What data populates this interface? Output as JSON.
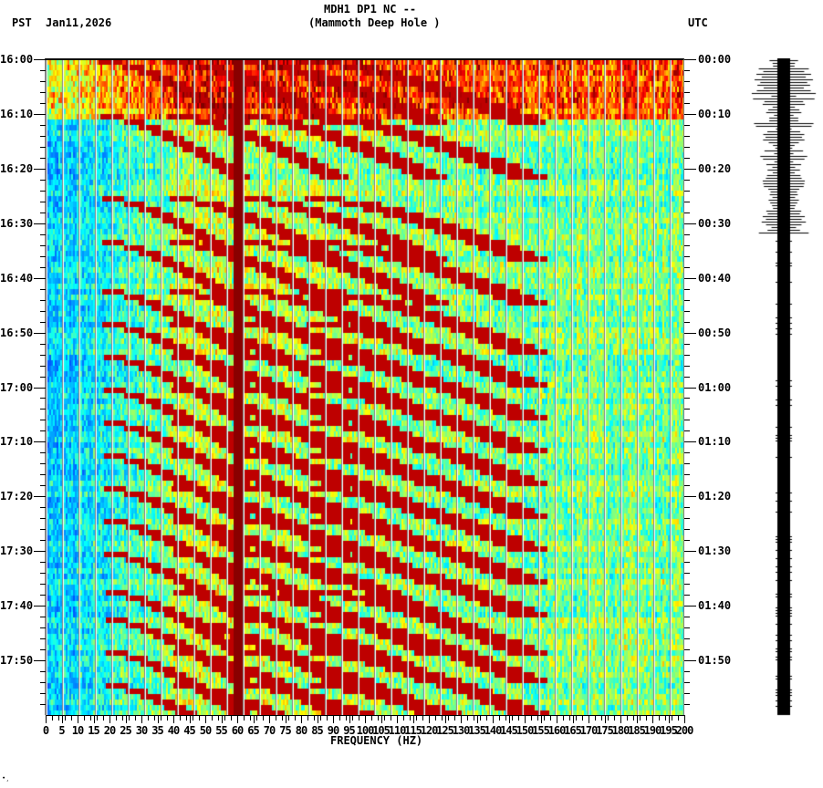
{
  "header": {
    "title_line1": "MDH1 DP1 NC --",
    "title_line2": "(Mammoth Deep Hole )",
    "left_timezone": "PST",
    "date": "Jan11,2026",
    "right_timezone": "UTC"
  },
  "footer": {
    "corner_mark": "∙̧"
  },
  "chart_data": {
    "type": "heatmap",
    "title": "MDH1 DP1 NC -- (Mammoth Deep Hole )",
    "subtitle": "Jan11,2026",
    "xlabel": "FREQUENCY (HZ)",
    "ylabel_left": "PST",
    "ylabel_right": "UTC",
    "xlim": [
      0,
      200
    ],
    "x_ticks": [
      0,
      5,
      10,
      15,
      20,
      25,
      30,
      35,
      40,
      45,
      50,
      55,
      60,
      65,
      70,
      75,
      80,
      85,
      90,
      95,
      100,
      105,
      110,
      115,
      120,
      125,
      130,
      135,
      140,
      145,
      150,
      155,
      160,
      165,
      170,
      175,
      180,
      185,
      190,
      195,
      200
    ],
    "x_tick_labels": [
      "0",
      "5",
      "10",
      "15",
      "20",
      "25",
      "30",
      "35",
      "40",
      "45",
      "50",
      "55",
      "60",
      "65",
      "70",
      "75",
      "80",
      "85",
      "90",
      "95",
      "100",
      "105",
      "110",
      "115",
      "120",
      "125",
      "130",
      "135",
      "140",
      "145",
      "150",
      "155",
      "160",
      "165",
      "170",
      "175",
      "180",
      "185",
      "190",
      "195",
      "200"
    ],
    "y_range_minutes": [
      0,
      120
    ],
    "y_ticks_left": [
      "16:00",
      "16:10",
      "16:20",
      "16:30",
      "16:40",
      "16:50",
      "17:00",
      "17:10",
      "17:20",
      "17:30",
      "17:40",
      "17:50"
    ],
    "y_ticks_right": [
      "00:00",
      "00:10",
      "00:20",
      "00:30",
      "00:40",
      "00:50",
      "01:00",
      "01:10",
      "01:20",
      "01:30",
      "01:40",
      "01:50"
    ],
    "minor_tick_interval_min": 2,
    "grid": {
      "vertical_every_hz": 5,
      "color": "#808080"
    },
    "colormap": [
      "#0050ff",
      "#00a0ff",
      "#00ffff",
      "#80ff80",
      "#ffff00",
      "#ff8000",
      "#ff0000",
      "#800000"
    ],
    "features": {
      "line_60hz": {
        "freq": 60,
        "color": "#800000"
      },
      "noisy_interval_minutes": [
        0,
        11
      ],
      "chirp_start_minutes": [
        2,
        12,
        27,
        35,
        44,
        50,
        56,
        62,
        68,
        74,
        80,
        86,
        92,
        99,
        104,
        110,
        116
      ],
      "chirp_description": "repeated rising tonal sweeps from ~20-45 Hz up to ~130 Hz, plus harmonics"
    },
    "trace_panel": {
      "type": "seismogram",
      "color": "#000000",
      "large_amplitude_interval_minutes": [
        0,
        32
      ]
    }
  }
}
